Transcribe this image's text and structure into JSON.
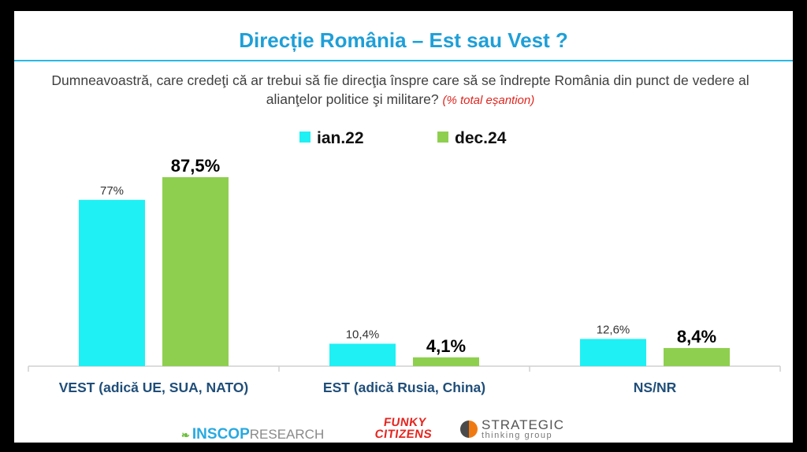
{
  "title": "Direcție România – Est sau Vest ?",
  "question": "Dumneavoastră, care credeţi că ar trebui să fie direcţia înspre care să se îndrepte România din punct de vedere al alianţelor politice şi militare?",
  "question_note": "(% total eșantion)",
  "logos": {
    "inscop_main": "INSCOP",
    "inscop_sub": "RESEARCH",
    "funky_line1": "FUNKY",
    "funky_line2": "CITIZENS",
    "strategic_line1": "STRATEGIC",
    "strategic_line2": "thinking group"
  },
  "chart_data": {
    "type": "bar",
    "categories": [
      "VEST (adică UE, SUA, NATO)",
      "EST (adică Rusia, China)",
      "NS/NR"
    ],
    "series": [
      {
        "name": "ian.22",
        "color": "#1ff0f4",
        "values": [
          77,
          10.4,
          12.6
        ],
        "labels": [
          "77%",
          "10,4%",
          "12,6%"
        ],
        "label_bold": false
      },
      {
        "name": "dec.24",
        "color": "#8fcf4f",
        "values": [
          87.5,
          4.1,
          8.4
        ],
        "labels": [
          "87,5%",
          "4,1%",
          "8,4%"
        ],
        "label_bold": true
      }
    ],
    "ylim": [
      0,
      100
    ],
    "legend_position": "top-center",
    "grid": false,
    "xlabel": "",
    "ylabel": ""
  }
}
